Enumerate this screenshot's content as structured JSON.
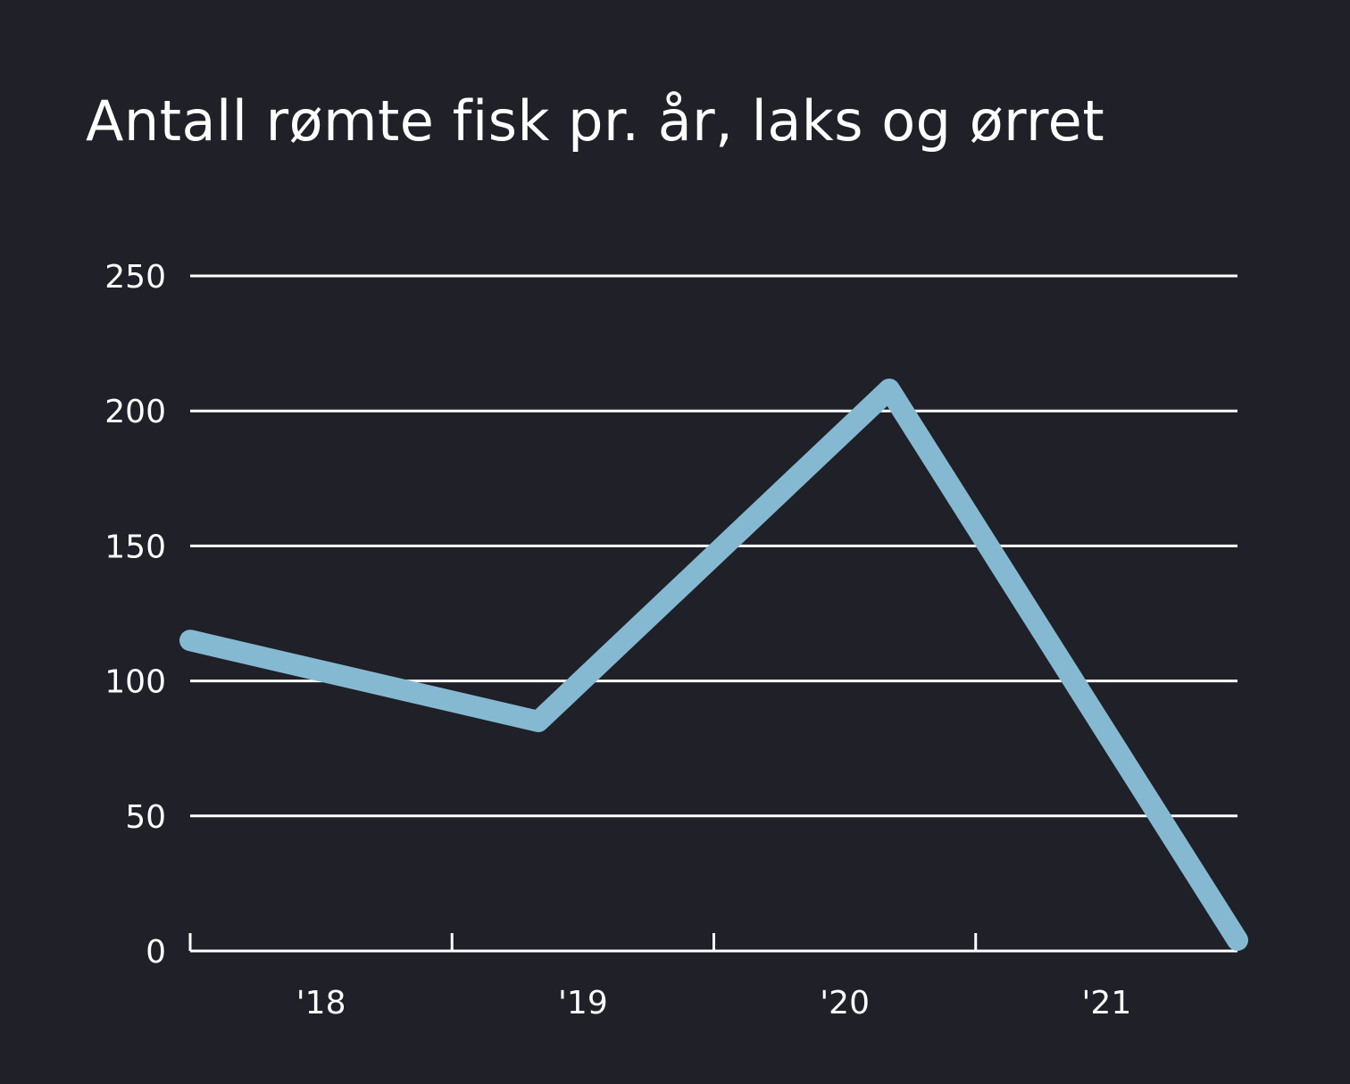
{
  "chart_data": {
    "type": "line",
    "title": "Antall rømte fisk pr. år, laks og ørret",
    "xlabel": "",
    "ylabel": "",
    "x_tick_labels": [
      "'18",
      "'19",
      "'20",
      "'21"
    ],
    "y_ticks": [
      0,
      50,
      100,
      150,
      200,
      250
    ],
    "ylim": [
      0,
      250
    ],
    "grid": true,
    "legend": "none",
    "series": [
      {
        "name": "Antall rømte fisk",
        "color": "#85b9d2",
        "points": [
          {
            "x": 0.0,
            "y": 115
          },
          {
            "x": 1.33,
            "y": 85
          },
          {
            "x": 2.67,
            "y": 208
          },
          {
            "x": 4.0,
            "y": 4
          }
        ]
      }
    ],
    "xlim": [
      0,
      4
    ]
  },
  "colors": {
    "background": "#1f2028",
    "text": "#ffffff",
    "grid": "#ffffff",
    "line": "#85b9d2"
  }
}
